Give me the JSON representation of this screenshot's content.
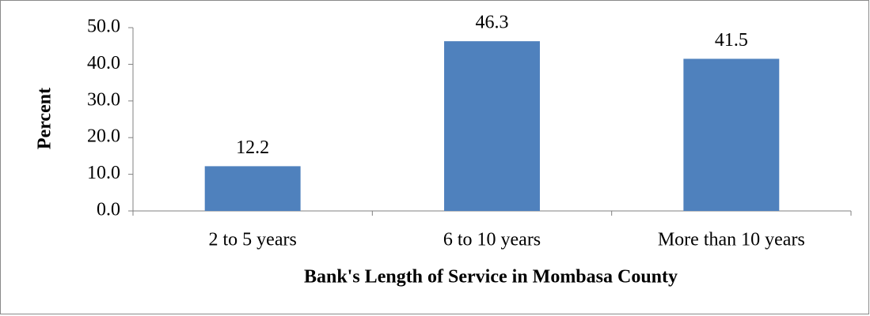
{
  "chart_data": {
    "type": "bar",
    "x_label": "Bank's Length of Service in Mombasa County",
    "y_label": "Percent",
    "categories": [
      "2 to 5 years",
      "6 to 10 years",
      "More than 10 years"
    ],
    "values": [
      12.2,
      46.3,
      41.5
    ],
    "color": "#4f81bd",
    "ylim": [
      0,
      50
    ],
    "yticks": [
      {
        "value": 0,
        "label": "0.0"
      },
      {
        "value": 10,
        "label": "10.0"
      },
      {
        "value": 20,
        "label": "20.0"
      },
      {
        "value": 30,
        "label": "30.0"
      },
      {
        "value": 40,
        "label": "40.0"
      },
      {
        "value": 50,
        "label": "50.0"
      }
    ],
    "grid": false
  }
}
